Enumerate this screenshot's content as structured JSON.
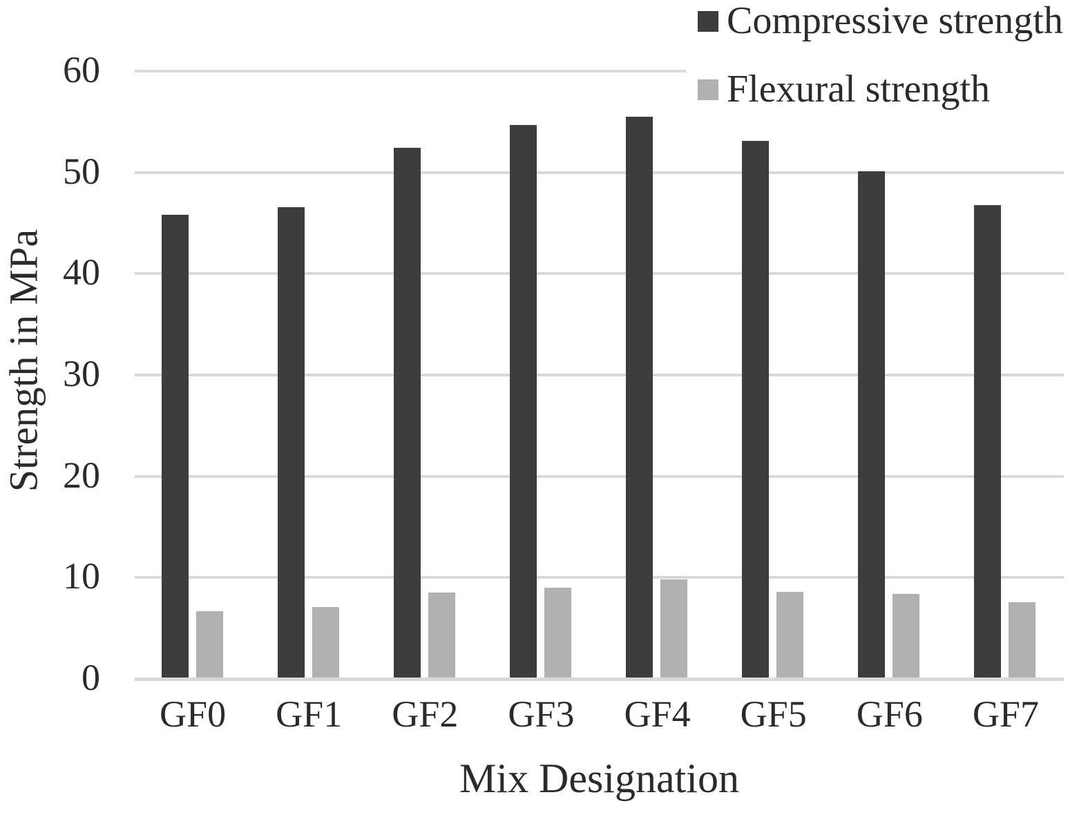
{
  "chart_data": {
    "type": "bar",
    "title": "",
    "xlabel": "Mix Designation",
    "ylabel": "Strength in MPa",
    "categories": [
      "GF0",
      "GF1",
      "GF2",
      "GF3",
      "GF4",
      "GF5",
      "GF6",
      "GF7"
    ],
    "series": [
      {
        "name": "Compressive strength",
        "color": "#3d3d3d",
        "values": [
          45.8,
          46.6,
          52.4,
          54.7,
          55.5,
          53.1,
          50.1,
          46.8
        ]
      },
      {
        "name": "Flexural strength",
        "color": "#b1b1b1",
        "values": [
          6.7,
          7.1,
          8.5,
          9.0,
          9.8,
          8.6,
          8.4,
          7.6
        ]
      }
    ],
    "ylim": [
      0,
      60
    ],
    "yticks": [
      0,
      10,
      20,
      30,
      40,
      50,
      60
    ],
    "grid": true,
    "gridline_color": "#d9d9d9",
    "text_color": "#2b2b2b",
    "background_color": "#ffffff",
    "legend_position": "top-right"
  }
}
